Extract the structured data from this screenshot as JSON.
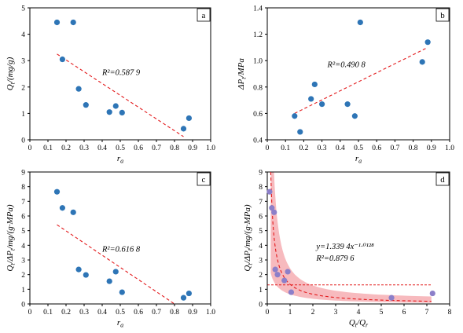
{
  "chart_data": [
    {
      "id": "a",
      "type": "scatter",
      "panel_label": "a",
      "xlabel": "r_a",
      "ylabel": "Q_t/(mg/g)",
      "xlim": [
        0,
        1.0
      ],
      "ylim": [
        0,
        5
      ],
      "xticks": [
        "0",
        "0.1",
        "0.2",
        "0.3",
        "0.4",
        "0.5",
        "0.6",
        "0.7",
        "0.8",
        "0.9",
        "1.0"
      ],
      "yticks": [
        "0",
        "1",
        "2",
        "3",
        "4",
        "5"
      ],
      "grid": false,
      "points": [
        [
          0.15,
          4.45
        ],
        [
          0.24,
          4.45
        ],
        [
          0.18,
          3.05
        ],
        [
          0.27,
          1.93
        ],
        [
          0.31,
          1.32
        ],
        [
          0.44,
          1.05
        ],
        [
          0.475,
          1.28
        ],
        [
          0.51,
          1.03
        ],
        [
          0.85,
          0.42
        ],
        [
          0.88,
          0.82
        ]
      ],
      "fit_line": {
        "x": [
          0.15,
          0.85
        ],
        "y": [
          3.25,
          0.12
        ]
      },
      "annotation": "R²=0.587 9",
      "annotation_pos": {
        "x": 0.4,
        "y": 2.45
      }
    },
    {
      "id": "b",
      "type": "scatter",
      "panel_label": "b",
      "xlabel": "r_a",
      "ylabel": "ΔP_t/MPa",
      "xlim": [
        0,
        1.0
      ],
      "ylim": [
        0.4,
        1.4
      ],
      "xticks": [
        "0",
        "0.1",
        "0.2",
        "0.3",
        "0.4",
        "0.5",
        "0.6",
        "0.7",
        "0.8",
        "0.9",
        "1.0"
      ],
      "yticks": [
        "0.4",
        "0.6",
        "0.8",
        "1.0",
        "1.2",
        "1.4"
      ],
      "grid": false,
      "points": [
        [
          0.15,
          0.58
        ],
        [
          0.18,
          0.46
        ],
        [
          0.24,
          0.71
        ],
        [
          0.26,
          0.82
        ],
        [
          0.3,
          0.67
        ],
        [
          0.44,
          0.67
        ],
        [
          0.48,
          0.58
        ],
        [
          0.51,
          1.29
        ],
        [
          0.85,
          0.99
        ],
        [
          0.88,
          1.14
        ]
      ],
      "fit_line": {
        "x": [
          0.15,
          0.88
        ],
        "y": [
          0.6,
          1.1
        ]
      },
      "annotation": "R²=0.490 8",
      "annotation_pos": {
        "x": 0.33,
        "y": 0.95
      }
    },
    {
      "id": "c",
      "type": "scatter",
      "panel_label": "c",
      "xlabel": "r_a",
      "ylabel": "Q_t/ΔP_t/mg/(g·MPa)",
      "xlim": [
        0,
        1.0
      ],
      "ylim": [
        0,
        9
      ],
      "xticks": [
        "0",
        "0.1",
        "0.2",
        "0.3",
        "0.4",
        "0.5",
        "0.6",
        "0.7",
        "0.8",
        "0.9",
        "1.0"
      ],
      "yticks": [
        "0",
        "1",
        "2",
        "3",
        "4",
        "5",
        "6",
        "7",
        "8",
        "9"
      ],
      "grid": false,
      "points": [
        [
          0.15,
          7.65
        ],
        [
          0.18,
          6.55
        ],
        [
          0.24,
          6.25
        ],
        [
          0.27,
          2.35
        ],
        [
          0.31,
          1.98
        ],
        [
          0.44,
          1.55
        ],
        [
          0.475,
          2.2
        ],
        [
          0.51,
          0.8
        ],
        [
          0.85,
          0.42
        ],
        [
          0.88,
          0.72
        ]
      ],
      "fit_line": {
        "x": [
          0.15,
          0.8
        ],
        "y": [
          5.4,
          0.0
        ]
      },
      "annotation": "R²=0.616 8",
      "annotation_pos": {
        "x": 0.4,
        "y": 3.55
      }
    },
    {
      "id": "d",
      "type": "scatter",
      "panel_label": "d",
      "xlabel": "Q_t/Q_r",
      "ylabel": "Q_t/ΔP_t/mg/(g·MPa)",
      "xlim": [
        0,
        8
      ],
      "ylim": [
        0,
        9
      ],
      "xticks": [
        "0",
        "1",
        "2",
        "3",
        "4",
        "5",
        "6",
        "7",
        "8"
      ],
      "yticks": [
        "0",
        "1",
        "2",
        "3",
        "4",
        "5",
        "6",
        "7",
        "8",
        "9"
      ],
      "grid": false,
      "points": [
        [
          0.1,
          7.65
        ],
        [
          0.2,
          6.55
        ],
        [
          0.3,
          6.25
        ],
        [
          0.35,
          2.35
        ],
        [
          0.45,
          2.0
        ],
        [
          0.75,
          1.6
        ],
        [
          0.9,
          2.2
        ],
        [
          1.05,
          0.8
        ],
        [
          5.45,
          0.42
        ],
        [
          7.25,
          0.72
        ]
      ],
      "fit_equation": {
        "a": 1.3394,
        "b": -1.0128
      },
      "fit_xrange": [
        0.15,
        7.2
      ],
      "annotation_line1": "y=1.339 4x⁻¹·⁰¹²⁸",
      "annotation_line2": "R²=0.879 6",
      "annotation_pos": {
        "x": 2.15,
        "y": 3.75
      },
      "band_color": "#f4a3a8"
    }
  ],
  "colors": {
    "point_blue": "#2e75b6",
    "point_purple": "#8c7fc9",
    "fit_red": "#e31a1c"
  }
}
